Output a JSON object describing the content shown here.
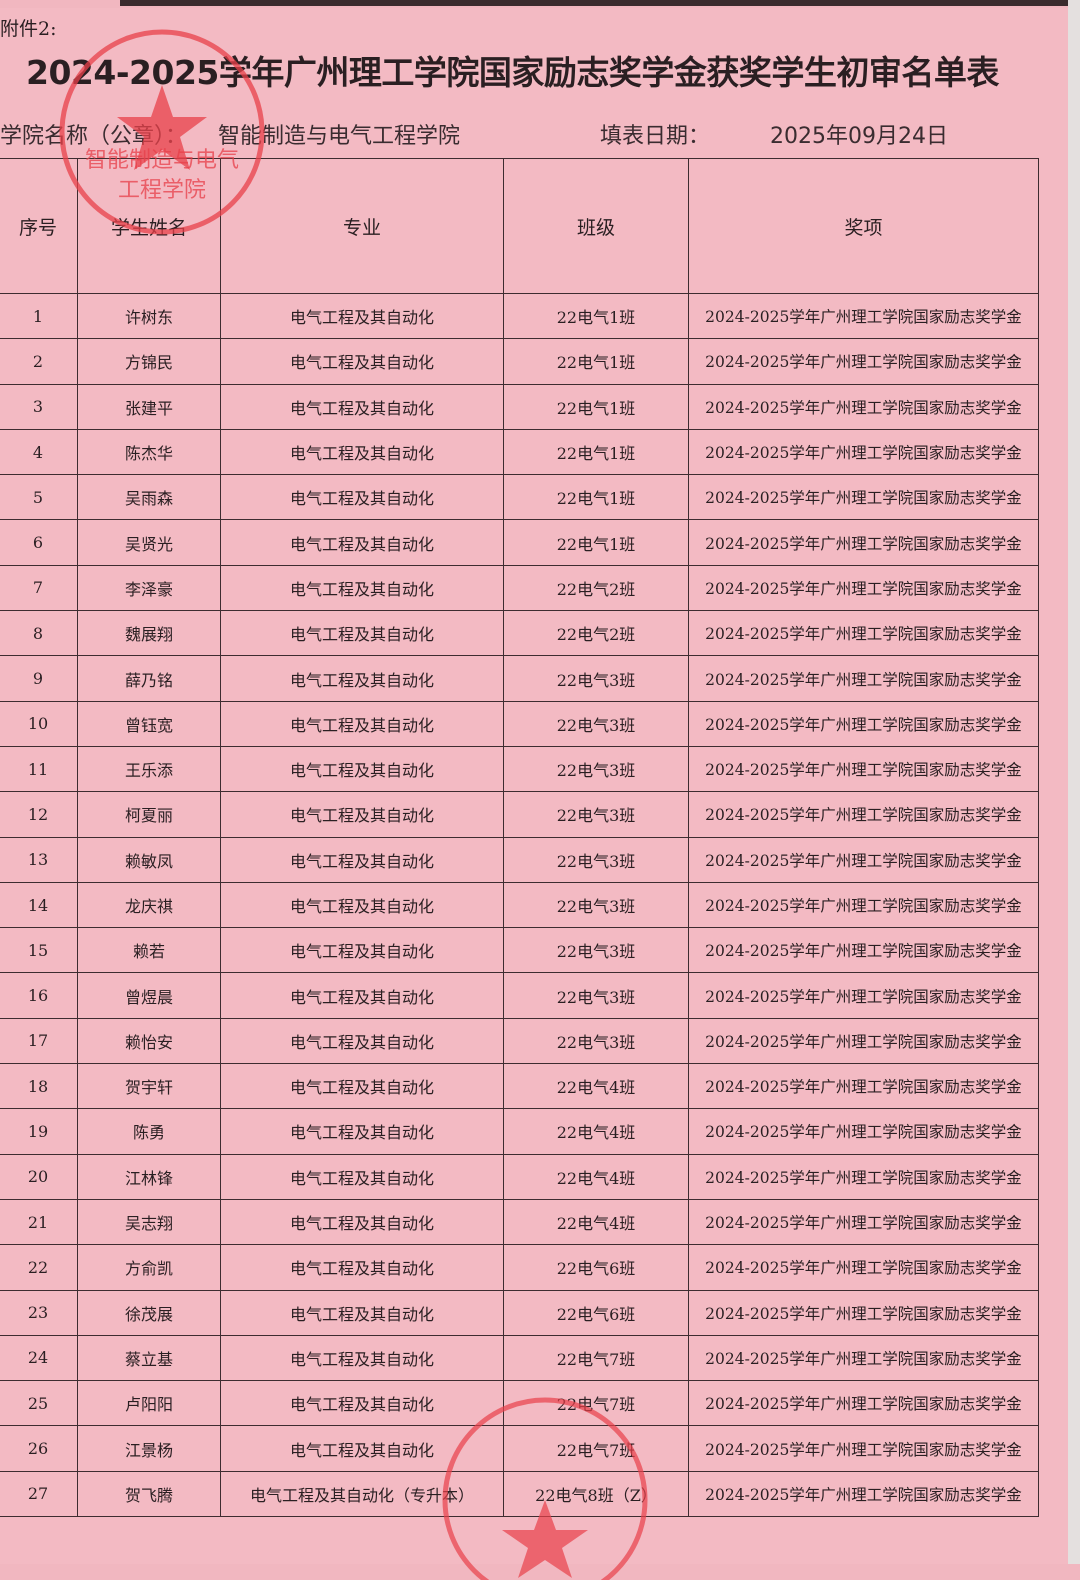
{
  "annex": "附件2:",
  "title": "2024-2025学年广州理工学院国家励志奖学金获奖学生初审名单表",
  "college_label": "学院名称（公章）：",
  "college_name": "智能制造与电气工程学院",
  "date_label": "填表日期：",
  "date_value": "2025年09月24日",
  "stamp_text": "广州理工学院 智能制造与电气工程学院",
  "headers": [
    "序号",
    "学生姓名",
    "专业",
    "班级",
    "奖项"
  ],
  "rows": [
    [
      "1",
      "许树东",
      "电气工程及其自动化",
      "22电气1班",
      "2024-2025学年广州理工学院国家励志奖学金"
    ],
    [
      "2",
      "方锦民",
      "电气工程及其自动化",
      "22电气1班",
      "2024-2025学年广州理工学院国家励志奖学金"
    ],
    [
      "3",
      "张建平",
      "电气工程及其自动化",
      "22电气1班",
      "2024-2025学年广州理工学院国家励志奖学金"
    ],
    [
      "4",
      "陈杰华",
      "电气工程及其自动化",
      "22电气1班",
      "2024-2025学年广州理工学院国家励志奖学金"
    ],
    [
      "5",
      "吴雨森",
      "电气工程及其自动化",
      "22电气1班",
      "2024-2025学年广州理工学院国家励志奖学金"
    ],
    [
      "6",
      "吴贤光",
      "电气工程及其自动化",
      "22电气1班",
      "2024-2025学年广州理工学院国家励志奖学金"
    ],
    [
      "7",
      "李泽豪",
      "电气工程及其自动化",
      "22电气2班",
      "2024-2025学年广州理工学院国家励志奖学金"
    ],
    [
      "8",
      "魏展翔",
      "电气工程及其自动化",
      "22电气2班",
      "2024-2025学年广州理工学院国家励志奖学金"
    ],
    [
      "9",
      "薛乃铭",
      "电气工程及其自动化",
      "22电气3班",
      "2024-2025学年广州理工学院国家励志奖学金"
    ],
    [
      "10",
      "曾钰宽",
      "电气工程及其自动化",
      "22电气3班",
      "2024-2025学年广州理工学院国家励志奖学金"
    ],
    [
      "11",
      "王乐添",
      "电气工程及其自动化",
      "22电气3班",
      "2024-2025学年广州理工学院国家励志奖学金"
    ],
    [
      "12",
      "柯夏丽",
      "电气工程及其自动化",
      "22电气3班",
      "2024-2025学年广州理工学院国家励志奖学金"
    ],
    [
      "13",
      "赖敏凤",
      "电气工程及其自动化",
      "22电气3班",
      "2024-2025学年广州理工学院国家励志奖学金"
    ],
    [
      "14",
      "龙庆祺",
      "电气工程及其自动化",
      "22电气3班",
      "2024-2025学年广州理工学院国家励志奖学金"
    ],
    [
      "15",
      "赖若",
      "电气工程及其自动化",
      "22电气3班",
      "2024-2025学年广州理工学院国家励志奖学金"
    ],
    [
      "16",
      "曾煜晨",
      "电气工程及其自动化",
      "22电气3班",
      "2024-2025学年广州理工学院国家励志奖学金"
    ],
    [
      "17",
      "赖怡安",
      "电气工程及其自动化",
      "22电气3班",
      "2024-2025学年广州理工学院国家励志奖学金"
    ],
    [
      "18",
      "贺宇轩",
      "电气工程及其自动化",
      "22电气4班",
      "2024-2025学年广州理工学院国家励志奖学金"
    ],
    [
      "19",
      "陈勇",
      "电气工程及其自动化",
      "22电气4班",
      "2024-2025学年广州理工学院国家励志奖学金"
    ],
    [
      "20",
      "江林锋",
      "电气工程及其自动化",
      "22电气4班",
      "2024-2025学年广州理工学院国家励志奖学金"
    ],
    [
      "21",
      "吴志翔",
      "电气工程及其自动化",
      "22电气4班",
      "2024-2025学年广州理工学院国家励志奖学金"
    ],
    [
      "22",
      "方俞凯",
      "电气工程及其自动化",
      "22电气6班",
      "2024-2025学年广州理工学院国家励志奖学金"
    ],
    [
      "23",
      "徐茂展",
      "电气工程及其自动化",
      "22电气6班",
      "2024-2025学年广州理工学院国家励志奖学金"
    ],
    [
      "24",
      "蔡立基",
      "电气工程及其自动化",
      "22电气7班",
      "2024-2025学年广州理工学院国家励志奖学金"
    ],
    [
      "25",
      "卢阳阳",
      "电气工程及其自动化",
      "22电气7班",
      "2024-2025学年广州理工学院国家励志奖学金"
    ],
    [
      "26",
      "江景杨",
      "电气工程及其自动化",
      "22电气7班",
      "2024-2025学年广州理工学院国家励志奖学金"
    ],
    [
      "27",
      "贺飞腾",
      "电气工程及其自动化（专升本）",
      "22电气8班（Z）",
      "2024-2025学年广州理工学院国家励志奖学金"
    ]
  ],
  "colors": {
    "paper": "#f3bac3",
    "ink": "#2a1f22",
    "stamp": "#e8404a"
  }
}
